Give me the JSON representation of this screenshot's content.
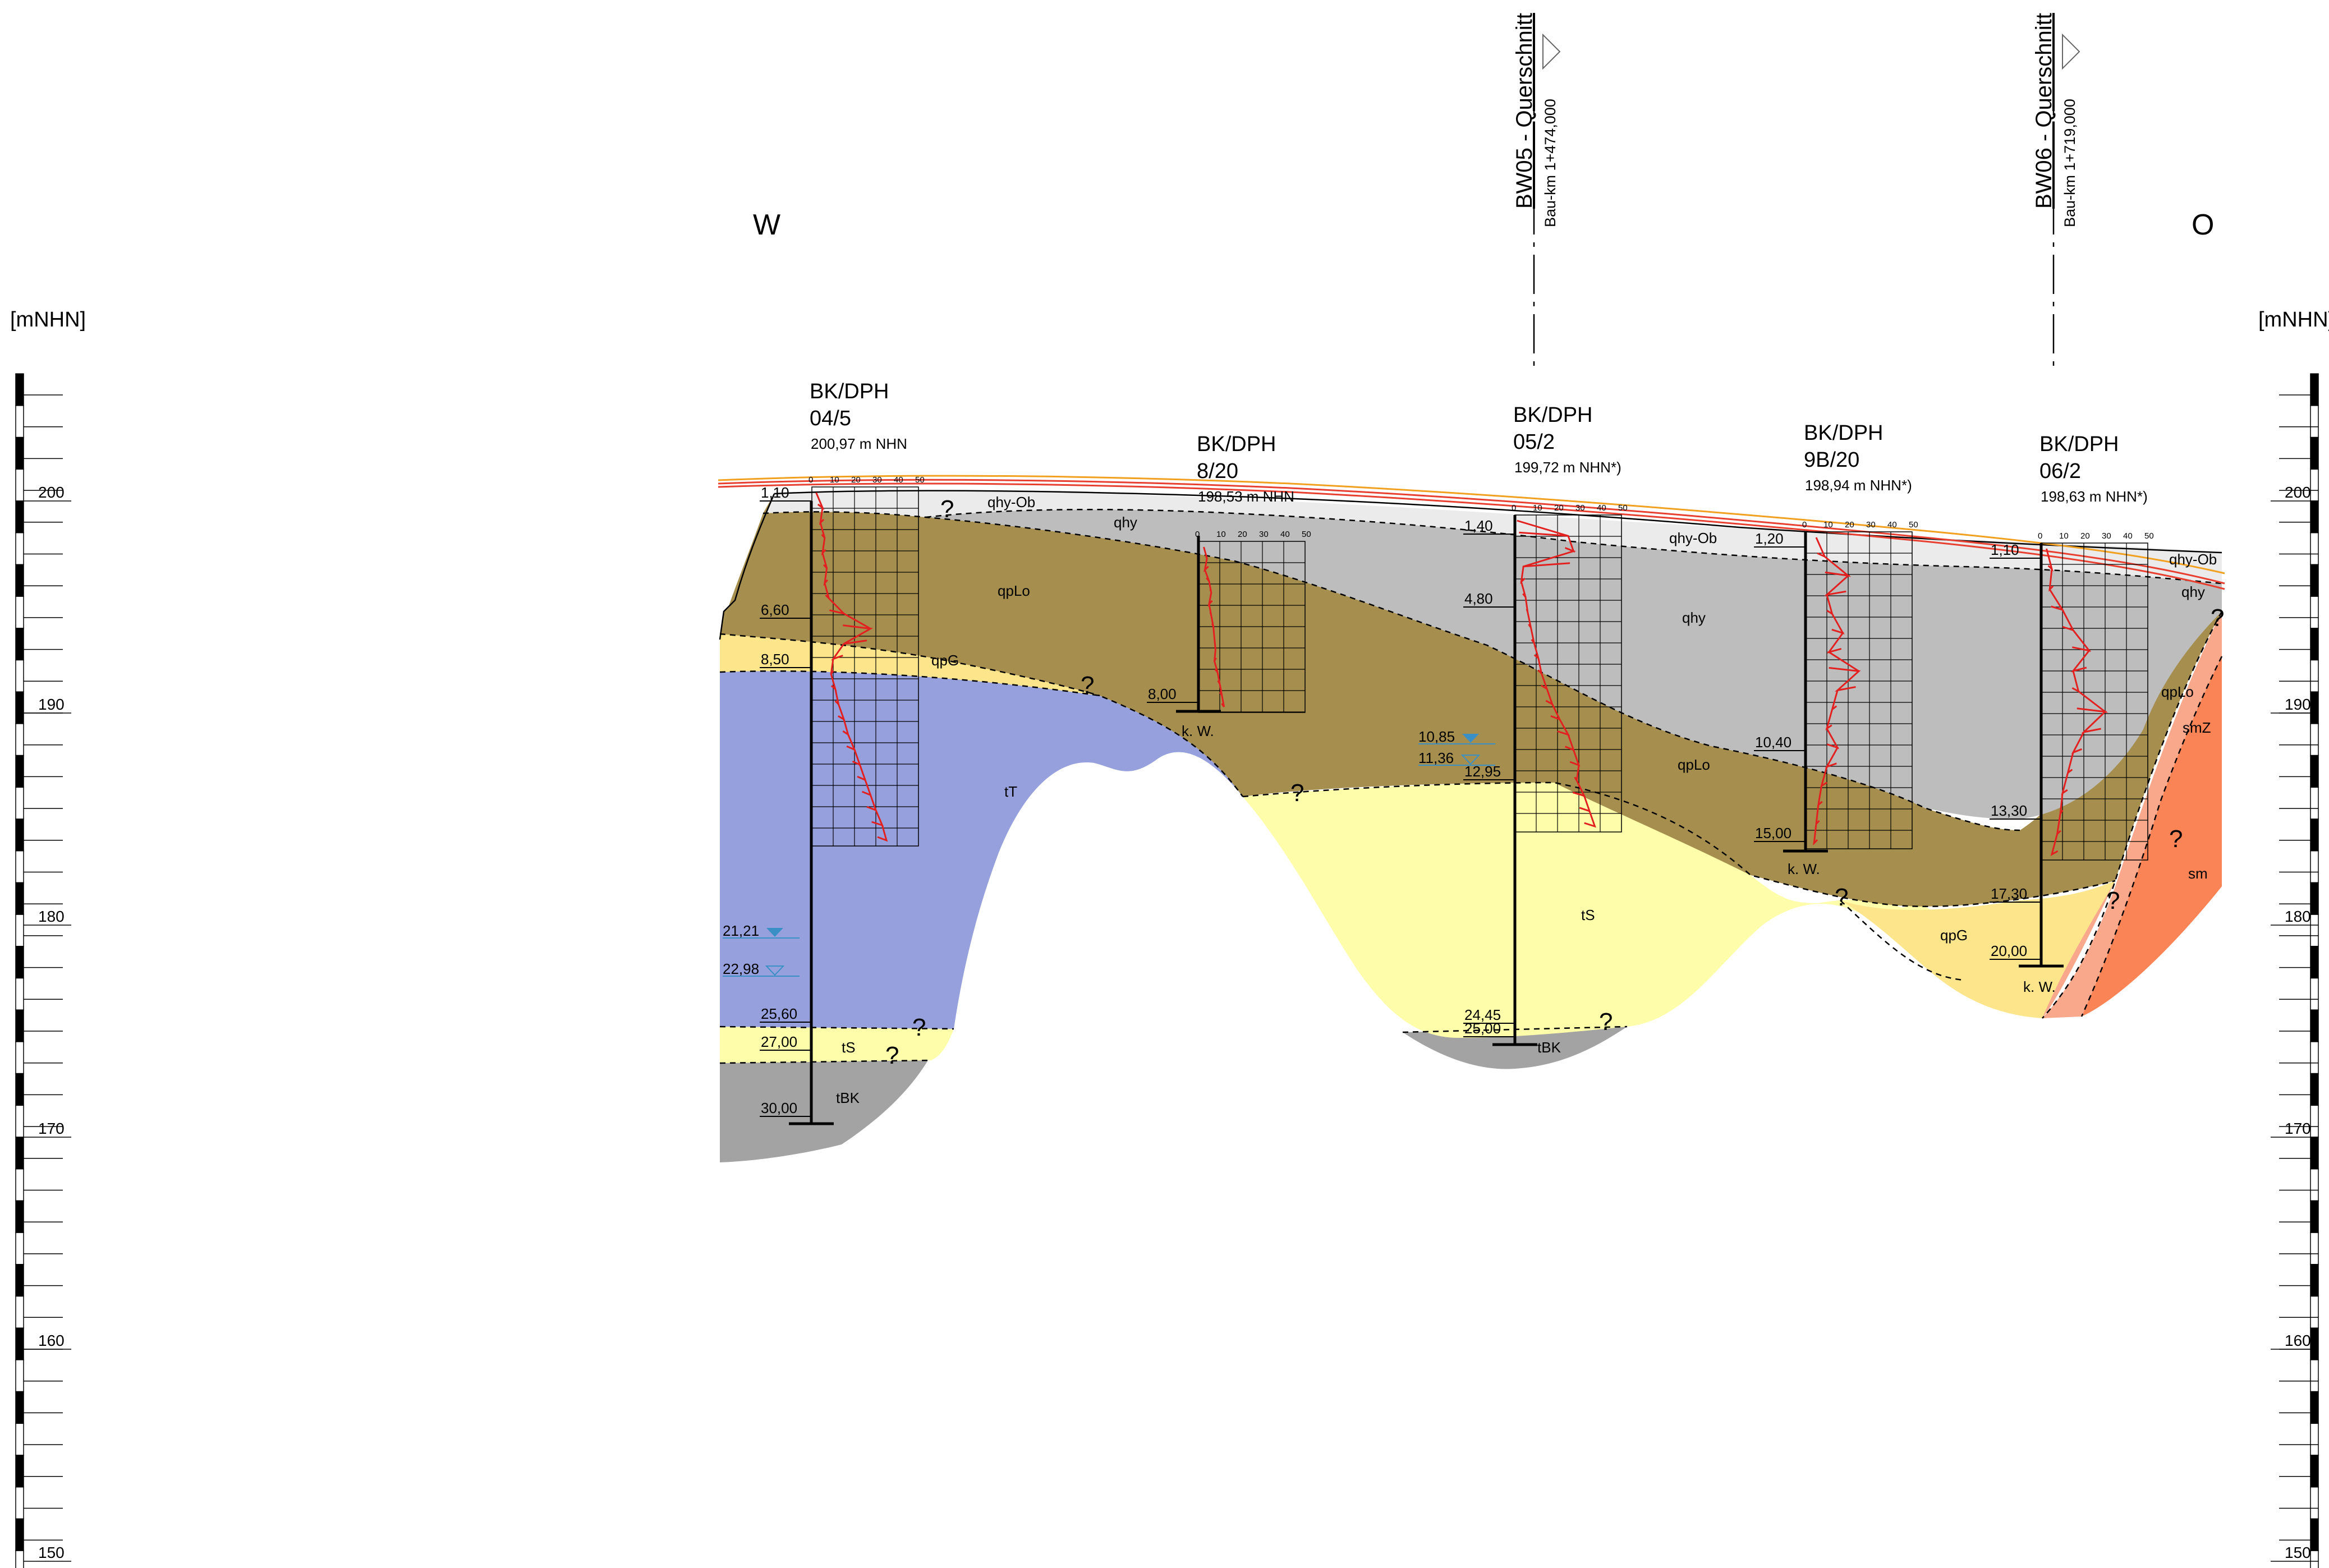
{
  "orientation": {
    "west": "W",
    "east": "O"
  },
  "axis": {
    "unit": "[mNHN]",
    "tick_labels": [
      "200",
      "190",
      "180",
      "170",
      "160",
      "150"
    ]
  },
  "cross_sections": [
    {
      "title": "BW05 - Querschnitt",
      "km": "Bau-km 1+474,000"
    },
    {
      "title": "BW06 - Querschnitt",
      "km": "Bau-km 1+719,000"
    }
  ],
  "boreholes": [
    {
      "type": "BK/DPH",
      "id": "04/5",
      "elevation": "200,97 m NHN",
      "depths": [
        "1,10",
        "6,60",
        "8,50",
        "25,60",
        "27,00",
        "30,00"
      ]
    },
    {
      "type": "BK/DPH",
      "id": "8/20",
      "elevation": "198,53 m NHN",
      "depths": [
        "8,00"
      ],
      "water_note": "k. W."
    },
    {
      "type": "BK/DPH",
      "id": "05/2",
      "elevation": "199,72 m NHN*)",
      "depths": [
        "1,40",
        "4,80",
        "12,95",
        "24,45",
        "25,00"
      ],
      "water_levels": [
        "10,85",
        "11,36"
      ]
    },
    {
      "type": "BK/DPH",
      "id": "9B/20",
      "elevation": "198,94 m NHN*)",
      "depths": [
        "1,20",
        "10,40",
        "15,00"
      ],
      "water_note": "k. W."
    },
    {
      "type": "BK/DPH",
      "id": "06/2",
      "elevation": "198,63 m NHN*)",
      "depths": [
        "1,10",
        "13,30",
        "17,30",
        "20,00"
      ],
      "water_note": "k. W."
    }
  ],
  "borehole_04_5_water_levels": [
    "21,21",
    "22,98"
  ],
  "dph_scale_labels": [
    "0",
    "10",
    "20",
    "30",
    "40",
    "50"
  ],
  "layers": {
    "qhy_ob": "qhy-Ob",
    "qhy": "qhy",
    "qpLo": "qpLo",
    "qpG": "qpG",
    "tT": "tT",
    "tS": "tS",
    "tBK": "tBK",
    "smZ": "smZ",
    "sm": "sm"
  },
  "uncertain_mark": "?",
  "colors": {
    "qhy_ob": "#ebebeb",
    "qhy": "#bdbdbd",
    "qpLo": "#a68f4e",
    "qpG": "#fde58c",
    "tT": "#96a0dc",
    "tS": "#fefeaa",
    "tBK": "#a3a3a3",
    "smZ": "#f9a88c",
    "sm": "#fa8456",
    "dph_curve": "#e32020",
    "water": "#3a8fc4",
    "ground_line": "#e84030",
    "ground_line_2": "#f2a020"
  }
}
